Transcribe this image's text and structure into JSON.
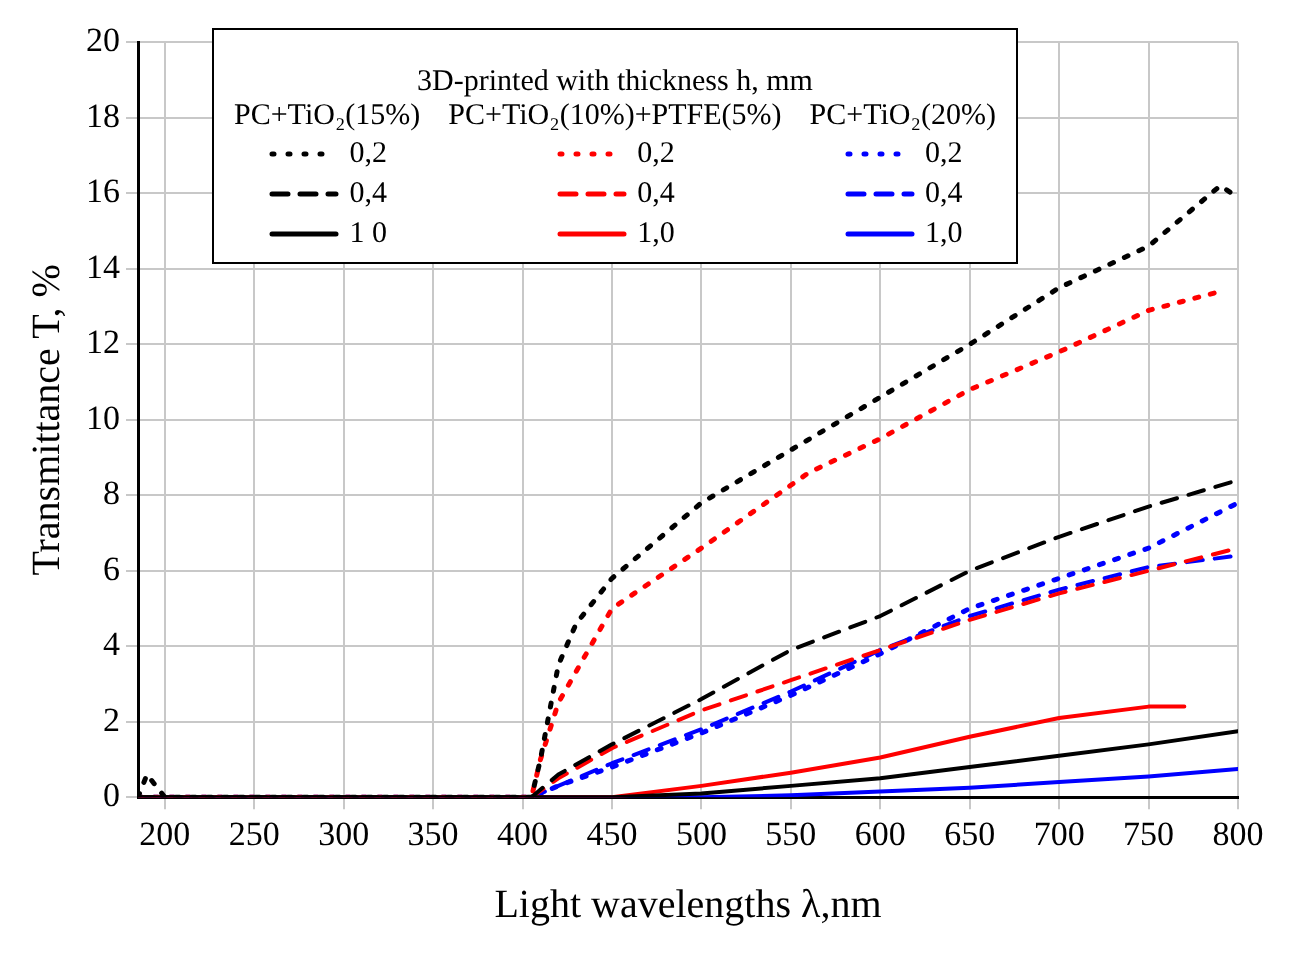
{
  "chart_data": {
    "type": "line",
    "xlabel": "Light wavelengths λ,nm",
    "ylabel": "Transmittance T, %",
    "legend_title": "3D-printed with thickness h, mm",
    "annotations": [
      "PC+TiO₂(15%)",
      "PC+TiO₂(10%)+PTFE(5%)",
      "PC+TiO₂(20%)"
    ],
    "xlim": [
      185,
      800
    ],
    "xticks": [
      200,
      250,
      300,
      350,
      400,
      450,
      500,
      550,
      600,
      650,
      700,
      750,
      800
    ],
    "ylim": [
      0,
      20
    ],
    "yticks": [
      0,
      2,
      4,
      6,
      8,
      10,
      12,
      14,
      16,
      18,
      20
    ],
    "grid": true,
    "legend": "top left",
    "marker": "none",
    "series": [
      {
        "name": "0,2",
        "color": "#000000",
        "line_style": "dotted",
        "x": [
          185,
          190,
          200,
          405,
          410,
          420,
          430,
          450,
          500,
          550,
          600,
          650,
          700,
          750,
          790,
          800
        ],
        "values": [
          0,
          0.6,
          0,
          0,
          1,
          3.5,
          4.6,
          5.8,
          7.8,
          9.2,
          10.6,
          12,
          13.5,
          14.6,
          16.2,
          15.9
        ]
      },
      {
        "name": "0,4",
        "color": "#000000",
        "line_style": "dashed",
        "x": [
          185,
          405,
          420,
          450,
          500,
          550,
          600,
          650,
          700,
          750,
          800
        ],
        "values": [
          0,
          0,
          0.6,
          1.4,
          2.6,
          3.9,
          4.8,
          6,
          6.9,
          7.7,
          8.4
        ]
      },
      {
        "name": "1 0",
        "color": "#000000",
        "line_style": "solid",
        "x": [
          185,
          450,
          500,
          550,
          600,
          650,
          700,
          750,
          800
        ],
        "values": [
          0,
          0,
          0.1,
          0.3,
          0.5,
          0.8,
          1.1,
          1.4,
          1.75
        ]
      },
      {
        "name": "0,2",
        "color": "#ff0000",
        "line_style": "dotted",
        "x": [
          185,
          405,
          410,
          420,
          450,
          500,
          560,
          600,
          650,
          700,
          750,
          790
        ],
        "values": [
          0,
          0,
          1,
          2.5,
          5,
          6.6,
          8.6,
          9.5,
          10.8,
          11.8,
          12.9,
          13.4
        ]
      },
      {
        "name": "0,4",
        "color": "#ff0000",
        "line_style": "dashed",
        "x": [
          185,
          405,
          420,
          450,
          500,
          550,
          600,
          650,
          700,
          750,
          800
        ],
        "values": [
          0,
          0,
          0.5,
          1.3,
          2.3,
          3.1,
          3.9,
          4.7,
          5.4,
          6,
          6.6
        ]
      },
      {
        "name": "1,0",
        "color": "#ff0000",
        "line_style": "solid",
        "x": [
          185,
          450,
          500,
          550,
          600,
          650,
          700,
          750,
          770
        ],
        "values": [
          0,
          0,
          0.3,
          0.65,
          1.05,
          1.6,
          2.1,
          2.4,
          2.4
        ]
      },
      {
        "name": "0,2",
        "color": "#0000ff",
        "line_style": "dotted",
        "x": [
          185,
          405,
          420,
          450,
          500,
          550,
          600,
          650,
          700,
          750,
          800
        ],
        "values": [
          0,
          0,
          0.3,
          0.8,
          1.7,
          2.7,
          3.8,
          5,
          5.8,
          6.6,
          7.8
        ]
      },
      {
        "name": "0,4",
        "color": "#0000ff",
        "line_style": "dashed",
        "x": [
          185,
          405,
          420,
          450,
          500,
          550,
          600,
          650,
          700,
          750,
          800
        ],
        "values": [
          0,
          0,
          0.3,
          0.9,
          1.8,
          2.8,
          3.9,
          4.8,
          5.5,
          6.1,
          6.4
        ]
      },
      {
        "name": "1,0",
        "color": "#0000ff",
        "line_style": "solid",
        "x": [
          185,
          500,
          550,
          600,
          650,
          700,
          750,
          800
        ],
        "values": [
          0,
          0,
          0.05,
          0.15,
          0.25,
          0.4,
          0.55,
          0.75
        ]
      }
    ]
  }
}
